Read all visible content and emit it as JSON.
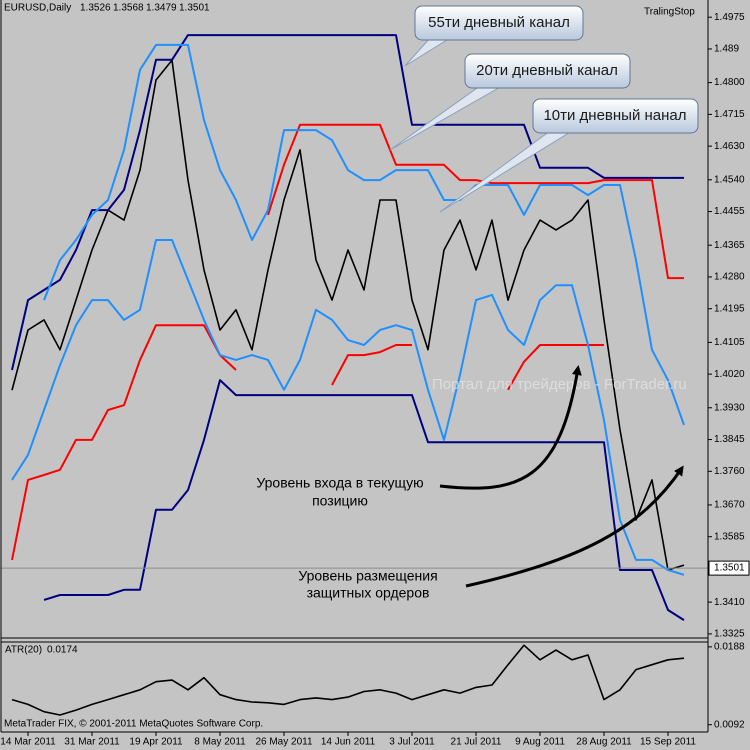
{
  "chart_data": [
    {
      "type": "line",
      "symbol": "EURUSD,Daily",
      "ohlc": [
        1.3526,
        1.3568,
        1.3479,
        1.3501
      ],
      "indicator_label": "TralingStop",
      "categories": [
        null,
        "14 Mar 2011",
        null,
        null,
        null,
        "31 Mar 2011",
        null,
        null,
        null,
        "19 Apr 2011",
        null,
        null,
        null,
        "8 May 2011",
        null,
        null,
        null,
        "26 May 2011",
        null,
        null,
        null,
        "14 Jun 2011",
        null,
        null,
        null,
        "3 Jul 2011",
        null,
        null,
        null,
        "21 Jul 2011",
        null,
        null,
        null,
        "9 Aug 2011",
        null,
        null,
        null,
        "28 Aug 2011",
        null,
        null,
        null,
        "15 Sep 2011",
        null
      ],
      "series": [
        {
          "color": "#000000",
          "values": [
            1.3977,
            1.4138,
            1.4165,
            1.4085,
            1.4218,
            1.4352,
            1.4459,
            1.4432,
            1.4566,
            1.4807,
            1.486,
            1.4539,
            1.4299,
            1.4138,
            1.4192,
            1.4085,
            1.4299,
            1.4486,
            1.462,
            1.4325,
            1.4218,
            1.4352,
            1.4245,
            1.4486,
            1.4486,
            1.4218,
            1.4085,
            1.4352,
            1.4432,
            1.4299,
            1.4432,
            1.4218,
            1.4352,
            1.4432,
            1.4406,
            1.4432,
            1.4486,
            1.4165,
            1.3871,
            1.363,
            1.3737,
            1.3496,
            1.3509
          ]
        },
        {
          "color": "#000080",
          "values": [
            1.4031,
            1.4218,
            1.4245,
            1.4272,
            1.4352,
            1.4459,
            1.4459,
            1.4513,
            1.4673,
            1.4861,
            1.4861,
            1.4927,
            1.4927,
            1.4927,
            1.4927,
            1.4927,
            1.4927,
            1.4927,
            1.4927,
            1.4927,
            1.4927,
            1.4927,
            1.4927,
            1.4927,
            1.4927,
            1.4687,
            1.4687,
            1.4687,
            1.4687,
            1.4687,
            1.4687,
            1.4687,
            1.4687,
            1.4572,
            1.4572,
            1.4572,
            1.4572,
            1.4545,
            1.4545,
            1.4545,
            1.4545,
            1.4545,
            1.4545
          ]
        },
        {
          "color": "#000080",
          "values": [
            null,
            null,
            1.3416,
            1.3429,
            1.3429,
            1.3429,
            1.3429,
            1.3443,
            1.3443,
            1.3657,
            1.3657,
            1.371,
            1.3844,
            1.4004,
            1.3964,
            1.3964,
            1.3964,
            1.3964,
            1.3964,
            1.3964,
            1.3964,
            1.3964,
            1.3964,
            1.3964,
            1.3964,
            1.3964,
            1.3838,
            1.3838,
            1.3838,
            1.3838,
            1.3838,
            1.3838,
            1.3838,
            1.3838,
            1.3838,
            1.3838,
            1.3838,
            1.3838,
            1.3496,
            1.3496,
            1.3496,
            1.3389,
            1.3362
          ]
        },
        {
          "color": "#ff0000",
          "values": [
            null,
            null,
            null,
            null,
            null,
            null,
            null,
            null,
            null,
            null,
            null,
            null,
            null,
            null,
            null,
            null,
            1.4446,
            1.458,
            1.4687,
            1.4687,
            1.4687,
            1.4687,
            1.4687,
            1.4687,
            1.458,
            1.458,
            1.458,
            1.458,
            1.4539,
            1.4539,
            1.4531,
            1.4531,
            1.4531,
            1.4531,
            1.4531,
            1.4531,
            1.4531,
            1.4539,
            1.4539,
            1.4539,
            1.4539,
            1.4277,
            1.4277
          ]
        },
        {
          "color": "#ff0000",
          "values": [
            1.3523,
            1.3737,
            1.375,
            1.3764,
            1.3844,
            1.3844,
            1.3924,
            1.3937,
            1.4058,
            1.4151,
            1.4151,
            1.4151,
            1.4151,
            1.4071,
            1.4031,
            null,
            null,
            null,
            null,
            null,
            1.3991,
            1.4071,
            1.4071,
            1.4079,
            1.4098,
            1.4098,
            null,
            null,
            null,
            null,
            null,
            1.3978,
            1.4053,
            1.4098,
            1.4098,
            1.4098,
            1.4098,
            1.4098,
            null,
            null,
            null,
            null,
            null
          ]
        },
        {
          "color": "#1e90ff",
          "values": [
            null,
            null,
            1.4218,
            1.4325,
            1.4379,
            1.4446,
            1.4486,
            1.462,
            1.4834,
            1.4901,
            1.4901,
            1.4901,
            1.47,
            1.4566,
            1.4486,
            1.4379,
            1.4459,
            1.4673,
            1.4673,
            1.4673,
            1.4646,
            1.4566,
            1.4539,
            1.4539,
            1.4566,
            1.4566,
            1.4566,
            1.4486,
            1.4486,
            1.4526,
            1.4526,
            1.4526,
            1.4446,
            1.4526,
            1.4526,
            1.4526,
            1.4499,
            1.4526,
            1.4526,
            1.4325,
            1.4085,
            1.4004,
            1.3884
          ]
        },
        {
          "color": "#1e90ff",
          "values": [
            1.3737,
            1.3804,
            1.3924,
            1.4044,
            1.4151,
            1.4218,
            1.4218,
            1.4165,
            1.4192,
            1.4379,
            1.4379,
            1.4272,
            1.4165,
            1.4071,
            1.4058,
            1.4071,
            1.4058,
            1.3978,
            1.4058,
            1.4192,
            1.4165,
            1.4111,
            1.4098,
            1.4138,
            1.4151,
            1.4138,
            1.3978,
            1.3844,
            1.4018,
            1.4218,
            1.4232,
            1.4138,
            1.4098,
            1.4218,
            1.4258,
            1.4258,
            1.4098,
            1.3897,
            1.363,
            1.3523,
            1.3523,
            1.3496,
            1.3483
          ]
        }
      ],
      "ylim": [
        1.3314,
        1.5021
      ],
      "yticks": [
        1.4975,
        1.489,
        {
          "value": 1.48,
          "label": "1.4800"
        },
        1.4715,
        {
          "value": 1.463,
          "label": "1.4630"
        },
        {
          "value": 1.454,
          "label": "1.4540"
        },
        1.4455,
        1.4365,
        {
          "value": 1.428,
          "label": "1.4280"
        },
        1.4195,
        1.4105,
        {
          "value": 1.402,
          "label": "1.4020"
        },
        {
          "value": 1.393,
          "label": "1.3930"
        },
        1.3845,
        {
          "value": 1.376,
          "label": "1.3760"
        },
        {
          "value": 1.367,
          "label": "1.3670"
        },
        1.3585,
        {
          "value": 1.341,
          "label": "1.3410"
        },
        1.3325
      ],
      "current_price": 1.3501,
      "annotations": [
        "55ти дневный канал",
        "20ти дневный канал",
        "10ти дневный нанал"
      ],
      "notes": [
        [
          "Уровень входа в текущую",
          "позицию"
        ],
        [
          "Уровень размещения",
          "защитных ордеров"
        ]
      ],
      "watermark": "Портал для трейдеров - ForTrader.ru"
    },
    {
      "type": "line",
      "label": "ATR(20)",
      "current": 0.0174,
      "series": [
        {
          "color": "#000000",
          "values": [
            0.0123,
            0.0117,
            0.0108,
            0.0104,
            0.011,
            0.0117,
            0.0123,
            0.0129,
            0.0135,
            0.0145,
            0.0147,
            0.0135,
            0.015,
            0.0129,
            0.0123,
            0.012,
            0.0119,
            0.0117,
            0.0123,
            0.0125,
            0.0123,
            0.0126,
            0.0133,
            0.0135,
            0.0131,
            0.0123,
            0.0129,
            0.0135,
            0.0131,
            0.0138,
            0.0141,
            0.0166,
            0.019,
            0.0172,
            0.0184,
            0.0172,
            0.0178,
            0.0123,
            0.0135,
            0.016,
            0.0166,
            0.0172,
            0.0174
          ]
        }
      ],
      "ylim": [
        0.0083,
        0.0194
      ],
      "yticks": [
        0.0188,
        0.0092
      ],
      "footer": "MetaTrader FIX, © 2001-2011 MetaQuotes Software Corp."
    }
  ]
}
